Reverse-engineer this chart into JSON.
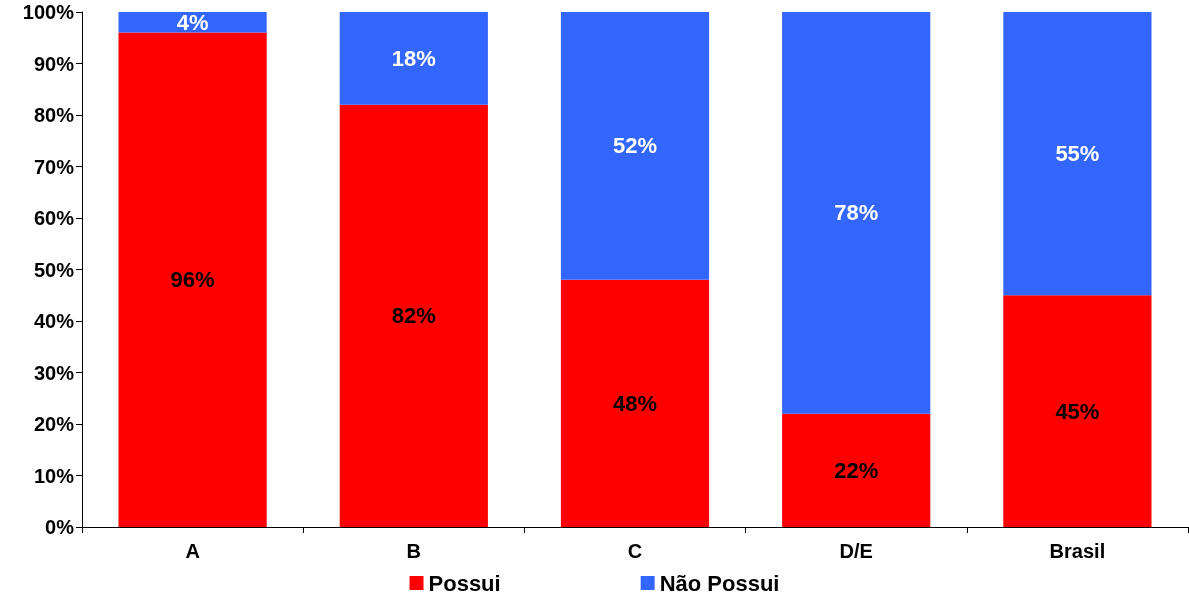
{
  "chart_data": {
    "type": "bar",
    "stacked": true,
    "categories": [
      "A",
      "B",
      "C",
      "D/E",
      "Brasil"
    ],
    "series": [
      {
        "name": "Possui",
        "color": "#ff0000",
        "values": [
          96,
          82,
          48,
          22,
          45
        ],
        "value_labels": [
          "96%",
          "82%",
          "48%",
          "22%",
          "45%"
        ]
      },
      {
        "name": "Não Possui",
        "color": "#3366ff",
        "values": [
          4,
          18,
          52,
          78,
          55
        ],
        "value_labels": [
          "4%",
          "18%",
          "52%",
          "78%",
          "55%"
        ]
      }
    ],
    "ylim": [
      0,
      100
    ],
    "yticks": [
      {
        "value": 0,
        "label": "0%"
      },
      {
        "value": 10,
        "label": "10%"
      },
      {
        "value": 20,
        "label": "20%"
      },
      {
        "value": 30,
        "label": "30%"
      },
      {
        "value": 40,
        "label": "40%"
      },
      {
        "value": 50,
        "label": "50%"
      },
      {
        "value": 60,
        "label": "60%"
      },
      {
        "value": 70,
        "label": "70%"
      },
      {
        "value": 80,
        "label": "80%"
      },
      {
        "value": 90,
        "label": "90%"
      },
      {
        "value": 100,
        "label": "100%"
      }
    ],
    "grid": false,
    "legend": "bottom"
  }
}
